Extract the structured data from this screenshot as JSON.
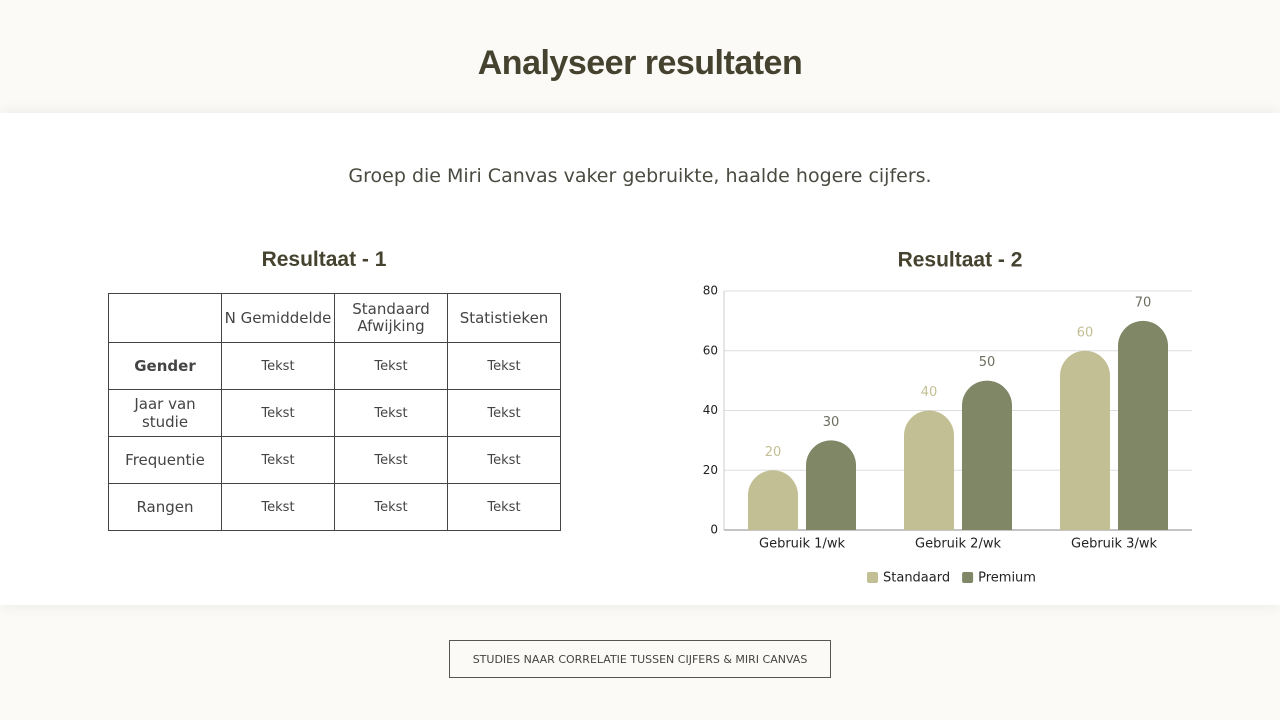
{
  "title": "Analyseer resultaten",
  "subtitle": "Groep die Miri Canvas vaker gebruikte, haalde hogere cijfers.",
  "table": {
    "title": "Resultaat - 1",
    "header": [
      "N Gemiddelde",
      "Standaard Afwijking",
      "Statistieken"
    ],
    "rows": [
      [
        "Gender",
        "Tekst",
        "Tekst",
        "Tekst"
      ],
      [
        "Jaar van studie",
        "Tekst",
        "Tekst",
        "Tekst"
      ],
      [
        "Frequentie",
        "Tekst",
        "Tekst",
        "Tekst"
      ],
      [
        "Rangen",
        "Tekst",
        "Tekst",
        "Tekst"
      ]
    ]
  },
  "chart_data": {
    "type": "bar",
    "title": "Resultaat - 2",
    "categories": [
      "Gebruik 1/wk",
      "Gebruik 2/wk",
      "Gebruik 3/wk"
    ],
    "series": [
      {
        "name": "Standaard",
        "color": "#c3bf94",
        "values": [
          20,
          40,
          60
        ]
      },
      {
        "name": "Premium",
        "color": "#7f8766",
        "values": [
          30,
          50,
          70
        ]
      }
    ],
    "ylim": [
      0,
      80
    ],
    "yticks": [
      0,
      20,
      40,
      60,
      80
    ],
    "grid": true,
    "legend": "bottom"
  },
  "footer": {
    "button": "STUDIES NAAR CORRELATIE TUSSEN CIJFERS & MIRI CANVAS"
  }
}
